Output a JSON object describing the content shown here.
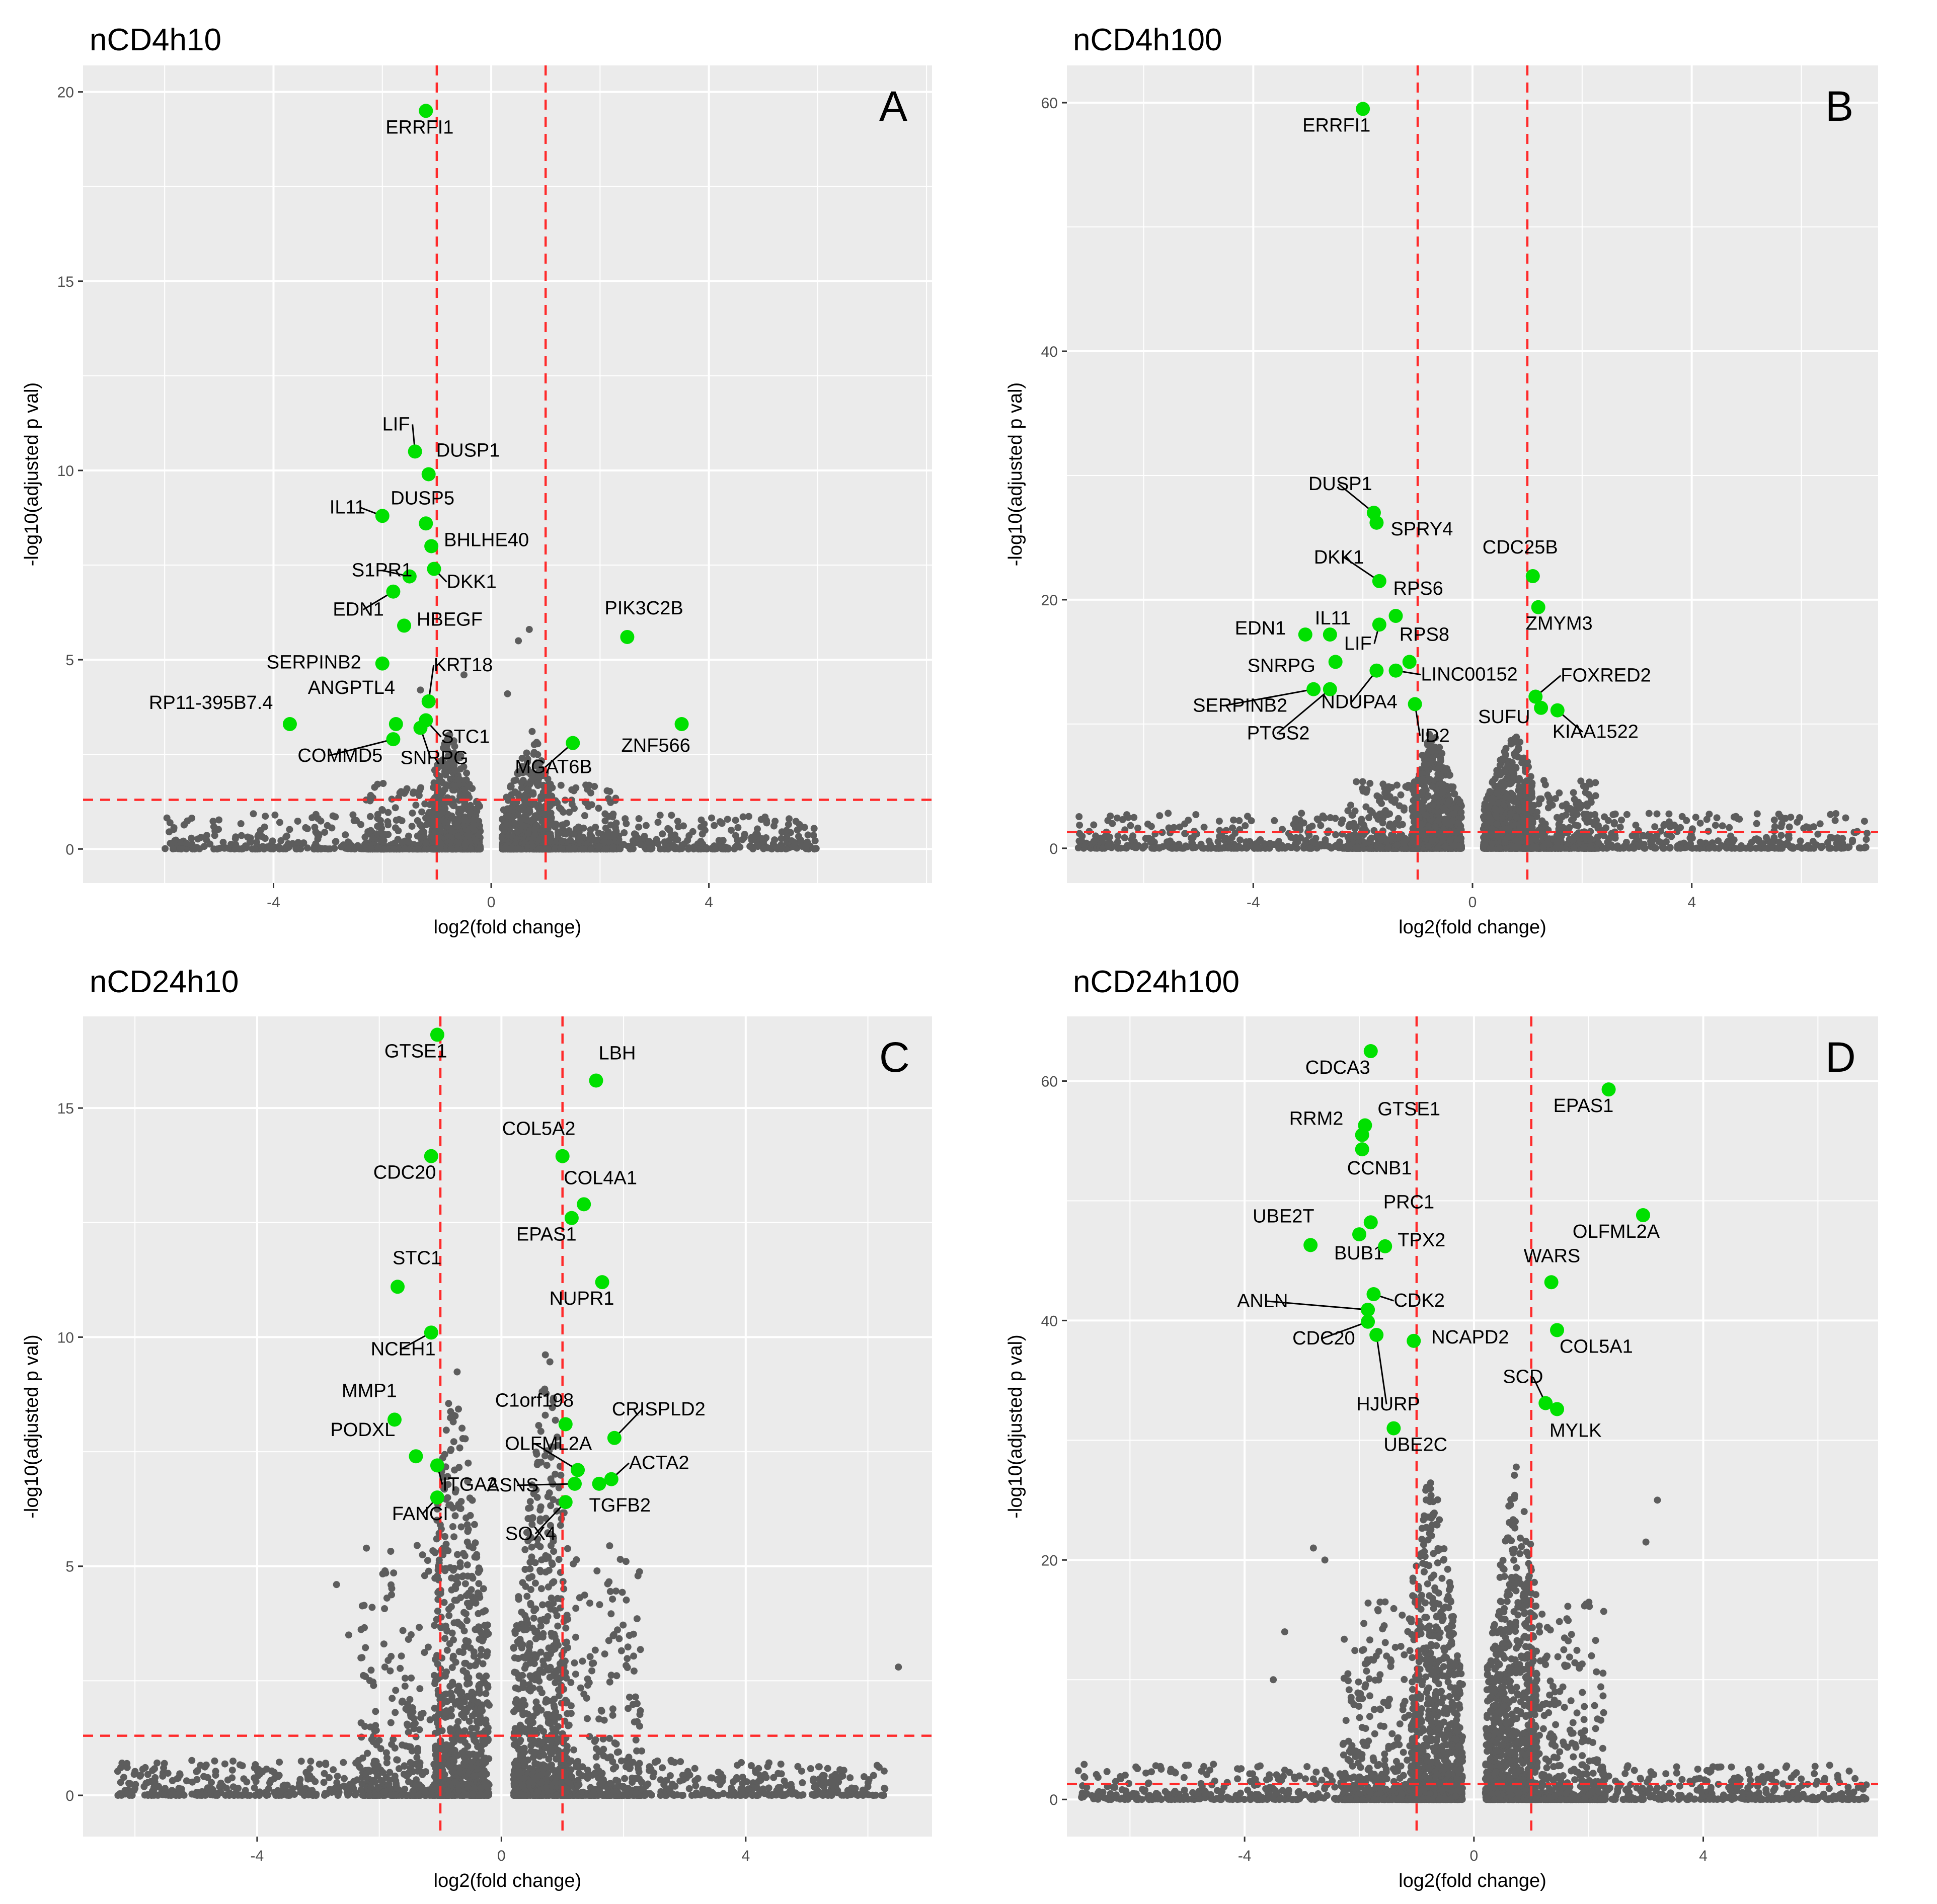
{
  "figure": {
    "description_free": true
  },
  "chart_data": [
    {
      "type": "scatter",
      "panel_title": "nCD4h10",
      "panel_letter": "A",
      "xlabel": "log2(fold change)",
      "ylabel": "-log10(adjusted p val)",
      "xlim": [
        -7.5,
        8.1
      ],
      "ylim": [
        -0.9,
        20.7
      ],
      "xticks": [
        -4,
        0,
        4
      ],
      "yticks": [
        0,
        5,
        10,
        15,
        20
      ],
      "vlines": [
        -1,
        1
      ],
      "hline": 1.3,
      "cloud": {
        "ymax": 3.2,
        "spread": 2.5,
        "n": 2200,
        "seed": 11,
        "outliers": [
          [
            -1.3,
            4.2
          ],
          [
            0.5,
            5.5
          ],
          [
            0.7,
            5.8
          ],
          [
            -0.5,
            4.6
          ],
          [
            0.3,
            4.1
          ]
        ]
      },
      "genes": [
        {
          "name": "ERRFI1",
          "x": -1.2,
          "y": 19.5
        },
        {
          "name": "LIF",
          "x": -1.4,
          "y": 10.5
        },
        {
          "name": "DUSP1",
          "x": -1.15,
          "y": 9.9
        },
        {
          "name": "IL11",
          "x": -2.0,
          "y": 8.8
        },
        {
          "name": "DUSP5",
          "x": -1.2,
          "y": 8.6
        },
        {
          "name": "BHLHE40",
          "x": -1.1,
          "y": 8.0
        },
        {
          "name": "S1PR1",
          "x": -1.5,
          "y": 7.2
        },
        {
          "name": "DKK1",
          "x": -1.05,
          "y": 7.4
        },
        {
          "name": "EDN1",
          "x": -1.8,
          "y": 6.8
        },
        {
          "name": "HBEGF",
          "x": -1.6,
          "y": 5.9
        },
        {
          "name": "PIK3C2B",
          "x": 2.5,
          "y": 5.6
        },
        {
          "name": "SERPINB2",
          "x": -2.0,
          "y": 4.9
        },
        {
          "name": "KRT18",
          "x": -1.15,
          "y": 3.9
        },
        {
          "name": "RP11-395B7.4",
          "x": -3.7,
          "y": 3.3
        },
        {
          "name": "ANGPTL4",
          "x": -1.75,
          "y": 3.3
        },
        {
          "name": "STC1",
          "x": -1.2,
          "y": 3.4
        },
        {
          "name": "COMMD5",
          "x": -1.8,
          "y": 2.9
        },
        {
          "name": "SNRPG",
          "x": -1.3,
          "y": 3.2
        },
        {
          "name": "MGAT6B",
          "x": 1.5,
          "y": 2.8
        },
        {
          "name": "ZNF566",
          "x": 3.5,
          "y": 3.3
        }
      ]
    },
    {
      "type": "scatter",
      "panel_title": "nCD4h100",
      "panel_letter": "B",
      "xlabel": "log2(fold change)",
      "ylabel": "-log10(adjusted p val)",
      "xlim": [
        -7.4,
        7.4
      ],
      "ylim": [
        -2.8,
        63.0
      ],
      "xticks": [
        -4,
        0,
        4
      ],
      "yticks": [
        0,
        20,
        40,
        60
      ],
      "vlines": [
        -1,
        1
      ],
      "hline": 1.3,
      "cloud": {
        "ymax": 10,
        "spread": 3.8,
        "n": 3200,
        "seed": 23,
        "outliers": []
      },
      "genes": [
        {
          "name": "ERRFI1",
          "x": -2.0,
          "y": 59.5
        },
        {
          "name": "DUSP1",
          "x": -1.8,
          "y": 27.0
        },
        {
          "name": "SPRY4",
          "x": -1.75,
          "y": 26.2
        },
        {
          "name": "CDC25B",
          "x": 1.1,
          "y": 21.9
        },
        {
          "name": "DKK1",
          "x": -1.7,
          "y": 21.5
        },
        {
          "name": "ZMYM3",
          "x": 1.2,
          "y": 19.4
        },
        {
          "name": "RPS6",
          "x": -1.4,
          "y": 18.7
        },
        {
          "name": "IL11",
          "x": -2.6,
          "y": 17.2
        },
        {
          "name": "EDN1",
          "x": -3.05,
          "y": 17.2
        },
        {
          "name": "LIF",
          "x": -1.7,
          "y": 18.0
        },
        {
          "name": "RPS8",
          "x": -1.15,
          "y": 15.0
        },
        {
          "name": "SNRPG",
          "x": -2.5,
          "y": 15.0
        },
        {
          "name": "LINC00152",
          "x": -1.4,
          "y": 14.3
        },
        {
          "name": "NDUPA4",
          "x": -1.75,
          "y": 14.3
        },
        {
          "name": "SERPINB2",
          "x": -2.9,
          "y": 12.8
        },
        {
          "name": "PTGS2",
          "x": -2.6,
          "y": 12.8
        },
        {
          "name": "FOXRED2",
          "x": 1.15,
          "y": 12.2
        },
        {
          "name": "SUFU",
          "x": 1.25,
          "y": 11.3
        },
        {
          "name": "KIAA1522",
          "x": 1.55,
          "y": 11.1
        },
        {
          "name": "ID2",
          "x": -1.05,
          "y": 11.6
        }
      ]
    },
    {
      "type": "scatter",
      "panel_title": "nCD24h10",
      "panel_letter": "C",
      "xlabel": "log2(fold change)",
      "ylabel": "-log10(adjusted p val)",
      "xlim": [
        -6.85,
        7.05
      ],
      "ylim": [
        -0.9,
        17.0
      ],
      "xticks": [
        -4,
        0,
        4
      ],
      "yticks": [
        0,
        5,
        10,
        15
      ],
      "vlines": [
        -1,
        1
      ],
      "hline": 1.3,
      "cloud": {
        "ymax": 10,
        "spread": 2.8,
        "n": 3000,
        "seed": 37,
        "outliers": [
          [
            -2.7,
            4.6
          ],
          [
            -2.5,
            3.5
          ],
          [
            -2.3,
            3.0
          ],
          [
            6.5,
            2.8
          ]
        ]
      },
      "genes": [
        {
          "name": "GTSE1",
          "x": -1.05,
          "y": 16.6
        },
        {
          "name": "LBH",
          "x": 1.55,
          "y": 15.6
        },
        {
          "name": "COL5A2",
          "x": 1.0,
          "y": 13.95
        },
        {
          "name": "CDC20",
          "x": -1.15,
          "y": 13.95
        },
        {
          "name": "COL4A1",
          "x": 1.35,
          "y": 12.9
        },
        {
          "name": "EPAS1",
          "x": 1.15,
          "y": 12.6
        },
        {
          "name": "NUPR1",
          "x": 1.65,
          "y": 11.2
        },
        {
          "name": "STC1",
          "x": -1.7,
          "y": 11.1
        },
        {
          "name": "NCEH1",
          "x": -1.15,
          "y": 10.1
        },
        {
          "name": "MMP1",
          "x": -1.75,
          "y": 8.2
        },
        {
          "name": "C1orf198",
          "x": 1.05,
          "y": 8.1
        },
        {
          "name": "CRISPLD2",
          "x": 1.85,
          "y": 7.8
        },
        {
          "name": "PODXL",
          "x": -1.4,
          "y": 7.4
        },
        {
          "name": "ITGA2",
          "x": -1.05,
          "y": 7.2
        },
        {
          "name": "OLFML2A",
          "x": 1.25,
          "y": 7.1
        },
        {
          "name": "ACTA2",
          "x": 1.8,
          "y": 6.9
        },
        {
          "name": "ASNS",
          "x": 1.2,
          "y": 6.8
        },
        {
          "name": "TGFB2",
          "x": 1.6,
          "y": 6.8
        },
        {
          "name": "FANCI",
          "x": -1.05,
          "y": 6.5
        },
        {
          "name": "SOX4",
          "x": 1.05,
          "y": 6.4
        }
      ]
    },
    {
      "type": "scatter",
      "panel_title": "nCD24h100",
      "panel_letter": "D",
      "xlabel": "log2(fold change)",
      "ylabel": "-log10(adjusted p val)",
      "xlim": [
        -7.1,
        7.05
      ],
      "ylim": [
        -3.1,
        65.4
      ],
      "xticks": [
        -4,
        0,
        4
      ],
      "yticks": [
        0,
        20,
        40,
        60
      ],
      "vlines": [
        -1,
        1
      ],
      "hline": 1.3,
      "cloud": {
        "ymax": 30,
        "spread": 3.8,
        "n": 3600,
        "seed": 53,
        "outliers": [
          [
            -2.8,
            21.0
          ],
          [
            -2.6,
            20.0
          ],
          [
            3.2,
            25.0
          ],
          [
            3.0,
            21.5
          ],
          [
            -3.3,
            14.0
          ],
          [
            -3.5,
            10.0
          ]
        ]
      },
      "genes": [
        {
          "name": "CDCA3",
          "x": -1.8,
          "y": 62.5
        },
        {
          "name": "EPAS1",
          "x": 2.35,
          "y": 59.3
        },
        {
          "name": "RRM2",
          "x": -1.95,
          "y": 55.5
        },
        {
          "name": "GTSE1",
          "x": -1.9,
          "y": 56.3
        },
        {
          "name": "CCNB1",
          "x": -1.95,
          "y": 54.3
        },
        {
          "name": "OLFML2A",
          "x": 2.95,
          "y": 48.8
        },
        {
          "name": "PRC1",
          "x": -1.8,
          "y": 48.2
        },
        {
          "name": "UBE2T",
          "x": -2.85,
          "y": 46.3
        },
        {
          "name": "BUB1",
          "x": -2.0,
          "y": 47.2
        },
        {
          "name": "TPX2",
          "x": -1.55,
          "y": 46.2
        },
        {
          "name": "WARS",
          "x": 1.35,
          "y": 43.2
        },
        {
          "name": "CDK2",
          "x": -1.75,
          "y": 42.2
        },
        {
          "name": "ANLN",
          "x": -1.85,
          "y": 40.9
        },
        {
          "name": "CDC20",
          "x": -1.85,
          "y": 39.9
        },
        {
          "name": "COL5A1",
          "x": 1.45,
          "y": 39.2
        },
        {
          "name": "HJURP",
          "x": -1.7,
          "y": 38.8
        },
        {
          "name": "NCAPD2",
          "x": -1.05,
          "y": 38.3
        },
        {
          "name": "SCD",
          "x": 1.25,
          "y": 33.1
        },
        {
          "name": "MYLK",
          "x": 1.45,
          "y": 32.6
        },
        {
          "name": "UBE2C",
          "x": -1.4,
          "y": 31.0
        }
      ]
    }
  ],
  "colors": {
    "panel_bg": "#ebebeb",
    "grid": "#ffffff",
    "point": "#5d5d5d",
    "highlight": "#00e000",
    "threshold": "#ff2a2a",
    "text": "#000000",
    "axis_text": "#4d4d4d"
  }
}
